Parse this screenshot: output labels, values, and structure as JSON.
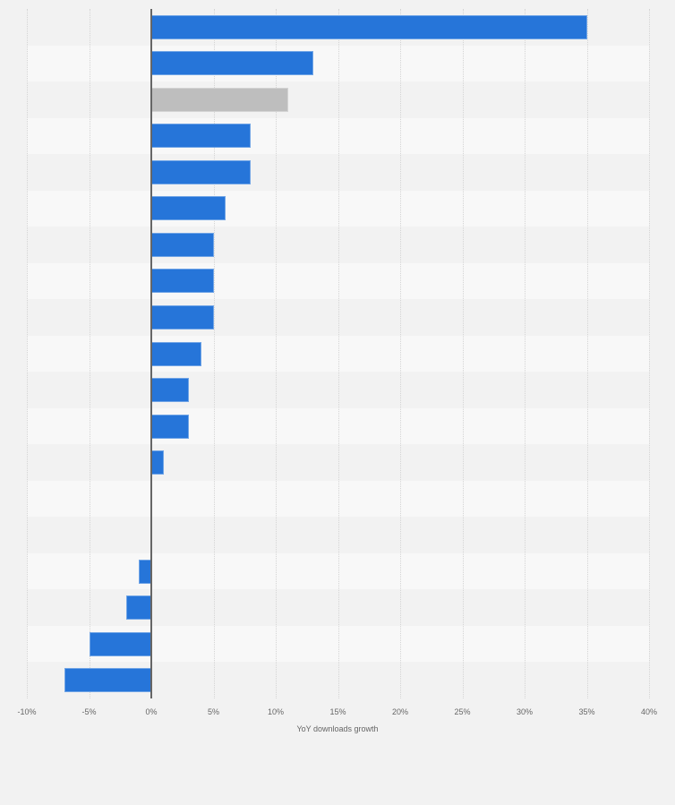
{
  "chart_data": {
    "type": "bar",
    "orientation": "horizontal",
    "title": "",
    "xlabel": "YoY downloads growth",
    "ylabel": "",
    "xlim": [
      -10,
      40
    ],
    "xticks": [
      "-10%",
      "-5%",
      "0%",
      "5%",
      "10%",
      "15%",
      "20%",
      "25%",
      "30%",
      "35%",
      "40%"
    ],
    "grid": true,
    "legend": null,
    "categories": [
      "",
      "",
      "",
      "",
      "",
      "",
      "",
      "",
      "",
      "",
      "",
      "",
      "",
      "",
      "",
      "",
      "",
      "",
      ""
    ],
    "values": [
      35,
      13,
      11,
      8,
      8,
      6,
      5,
      5,
      5,
      4,
      3,
      3,
      1,
      0,
      0,
      -1,
      -2,
      -5,
      -7
    ],
    "highlight_index": 2,
    "colors": {
      "bar": "#2675d9",
      "highlight": "#bebebe",
      "background": "#f2f2f2",
      "band_light": "#f8f8f8",
      "band_dark": "#f2f2f2",
      "axis": "#666666"
    }
  }
}
